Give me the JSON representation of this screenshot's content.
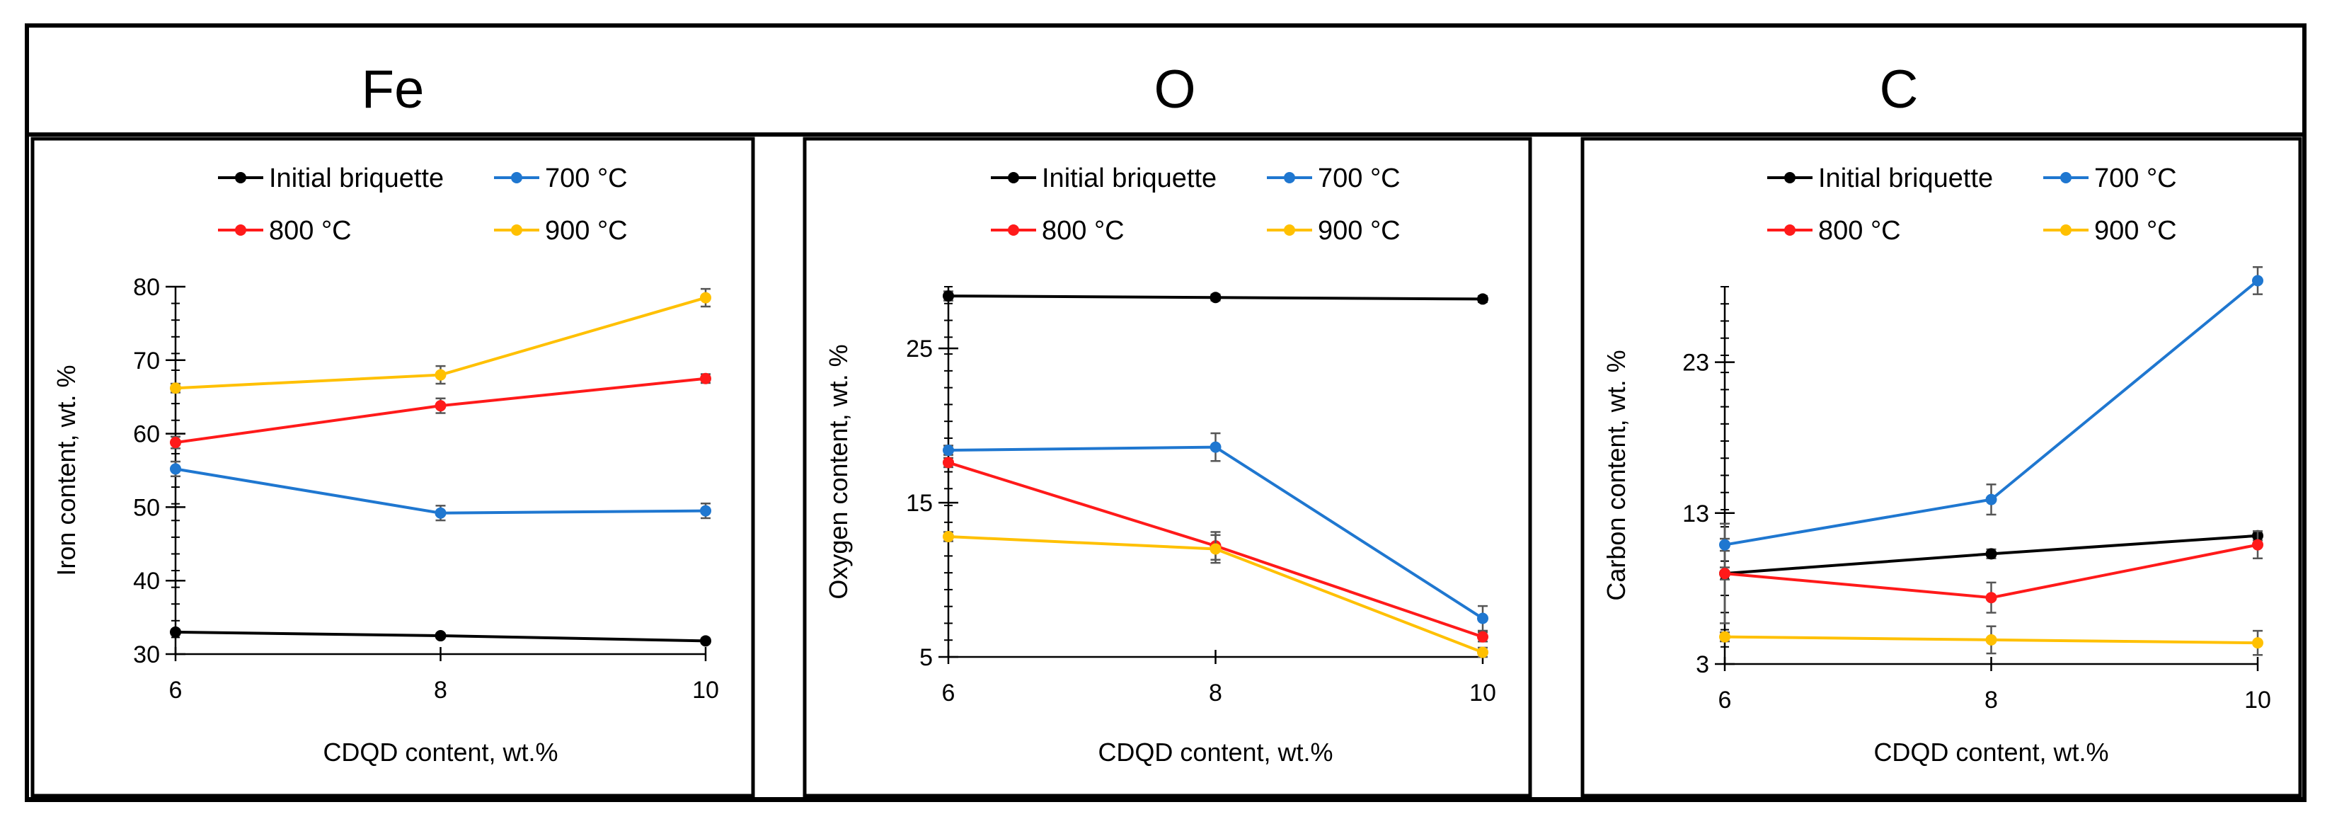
{
  "chart_data": [
    {
      "type": "line",
      "title": "Fe",
      "xlabel": "CDQD content, wt.%",
      "ylabel": "Iron content, wt. %",
      "x": [
        6,
        8,
        10
      ],
      "xlim": [
        6,
        10
      ],
      "xticks": [
        "6",
        "8",
        "10"
      ],
      "ylim": [
        30,
        80
      ],
      "yticks": [
        "30",
        "40",
        "50",
        "60",
        "70",
        "80"
      ],
      "grid": false,
      "legend": "top",
      "series": [
        {
          "name": "Initial briquette",
          "color": "#000000",
          "values": [
            33.0,
            32.5,
            31.8
          ],
          "errors": [
            0.3,
            0.3,
            0.3
          ]
        },
        {
          "name": "700 °C",
          "color": "#1f77d0",
          "values": [
            55.2,
            49.2,
            49.5
          ],
          "errors": [
            1.0,
            1.0,
            1.0
          ]
        },
        {
          "name": "800 °C",
          "color": "#ff1a1a",
          "values": [
            58.8,
            63.8,
            67.5
          ],
          "errors": [
            0.8,
            1.0,
            0.6
          ]
        },
        {
          "name": "900 °C",
          "color": "#ffc000",
          "values": [
            66.2,
            68.0,
            78.5
          ],
          "errors": [
            0.6,
            1.2,
            1.2
          ]
        }
      ]
    },
    {
      "type": "line",
      "title": "O",
      "xlabel": "CDQD content, wt.%",
      "ylabel": "Oxygen content, wt. %",
      "x": [
        6,
        8,
        10
      ],
      "xlim": [
        6,
        10
      ],
      "xticks": [
        "6",
        "8",
        "10"
      ],
      "ylim": [
        5,
        29
      ],
      "yticks": [
        "5",
        "15",
        "25"
      ],
      "grid": false,
      "legend": "top",
      "series": [
        {
          "name": "Initial briquette",
          "color": "#000000",
          "values": [
            28.4,
            28.3,
            28.2
          ],
          "errors": [
            0.3,
            0.2,
            0.2
          ]
        },
        {
          "name": "700 °C",
          "color": "#1f77d0",
          "values": [
            18.4,
            18.6,
            7.5
          ],
          "errors": [
            0.3,
            0.9,
            0.8
          ]
        },
        {
          "name": "800 °C",
          "color": "#ff1a1a",
          "values": [
            17.6,
            12.2,
            6.3
          ],
          "errors": [
            0.3,
            0.9,
            0.3
          ]
        },
        {
          "name": "900 °C",
          "color": "#ffc000",
          "values": [
            12.8,
            12.0,
            5.3
          ],
          "errors": [
            0.3,
            0.9,
            0.3
          ]
        }
      ]
    },
    {
      "type": "line",
      "title": "C",
      "xlabel": "CDQD content, wt.%",
      "ylabel": "Carbon content, wt. %",
      "x": [
        6,
        8,
        10
      ],
      "xlim": [
        6,
        10
      ],
      "xticks": [
        "6",
        "8",
        "10"
      ],
      "ylim": [
        3,
        28
      ],
      "yticks": [
        "3",
        "13",
        "23"
      ],
      "grid": false,
      "legend": "top",
      "series": [
        {
          "name": "Initial briquette",
          "color": "#000000",
          "values": [
            9.0,
            10.3,
            11.5
          ],
          "errors": [
            3.3,
            0.3,
            0.3
          ]
        },
        {
          "name": "700 °C",
          "color": "#1f77d0",
          "values": [
            10.9,
            13.9,
            28.4
          ],
          "errors": [
            0.4,
            1.0,
            0.9
          ]
        },
        {
          "name": "800 °C",
          "color": "#ff1a1a",
          "values": [
            9.0,
            7.4,
            10.9
          ],
          "errors": [
            0.4,
            1.0,
            0.9
          ]
        },
        {
          "name": "900 °C",
          "color": "#ffc000",
          "values": [
            4.8,
            4.6,
            4.4
          ],
          "errors": [
            0.3,
            0.9,
            0.8
          ]
        }
      ]
    }
  ]
}
